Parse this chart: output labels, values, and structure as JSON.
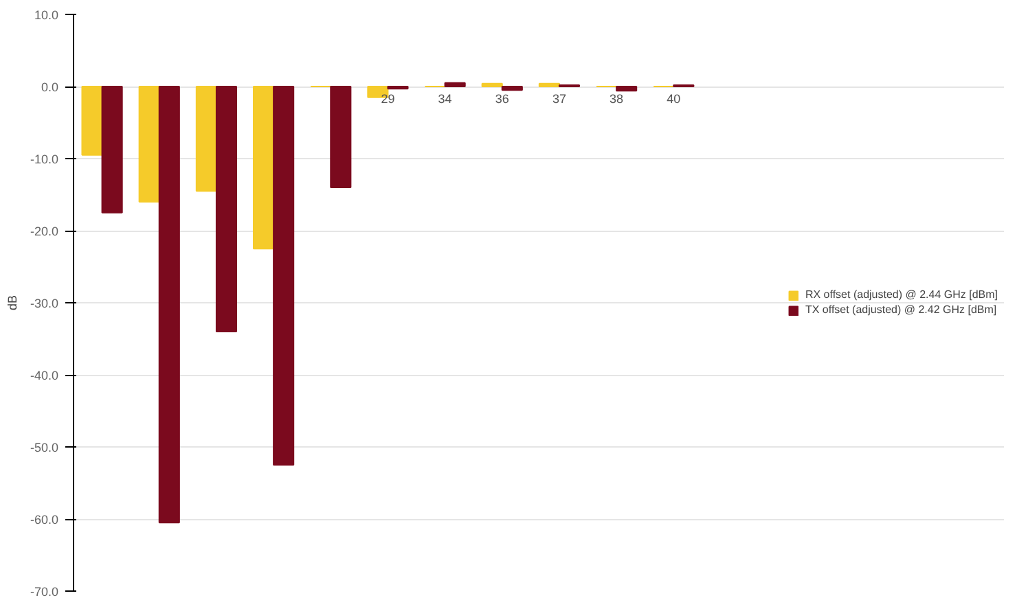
{
  "chart_data": {
    "type": "bar",
    "ylabel": "dB",
    "categories": [
      null,
      null,
      null,
      null,
      null,
      "29",
      "34",
      "36",
      "37",
      "38",
      "40"
    ],
    "series": [
      {
        "name": "RX offset (adjusted) @ 2.44 GHz [dBm]",
        "color": "#f5cb2a",
        "values": [
          -9.5,
          -16,
          -14.5,
          -22.5,
          0,
          -1.5,
          0,
          0.4,
          0.4,
          0,
          0
        ]
      },
      {
        "name": "TX offset (adjusted) @ 2.42 GHz [dBm]",
        "color": "#7b0a1e",
        "values": [
          -17.5,
          -60.5,
          -34,
          -52.5,
          -14,
          -0.3,
          0.5,
          -0.5,
          0.2,
          -0.6,
          0.2
        ]
      }
    ],
    "ylim": [
      -70,
      10
    ],
    "yticks": [
      {
        "value": 10,
        "label": "10.0"
      },
      {
        "value": 0,
        "label": "0.0"
      },
      {
        "value": -10,
        "label": "-10.0"
      },
      {
        "value": -20,
        "label": "-20.0"
      },
      {
        "value": -30,
        "label": "-30.0"
      },
      {
        "value": -40,
        "label": "-40.0"
      },
      {
        "value": -50,
        "label": "-50.0"
      },
      {
        "value": -60,
        "label": "-60.0"
      },
      {
        "value": -70,
        "label": "-70.0"
      }
    ],
    "grid": "y",
    "legend": "right"
  }
}
